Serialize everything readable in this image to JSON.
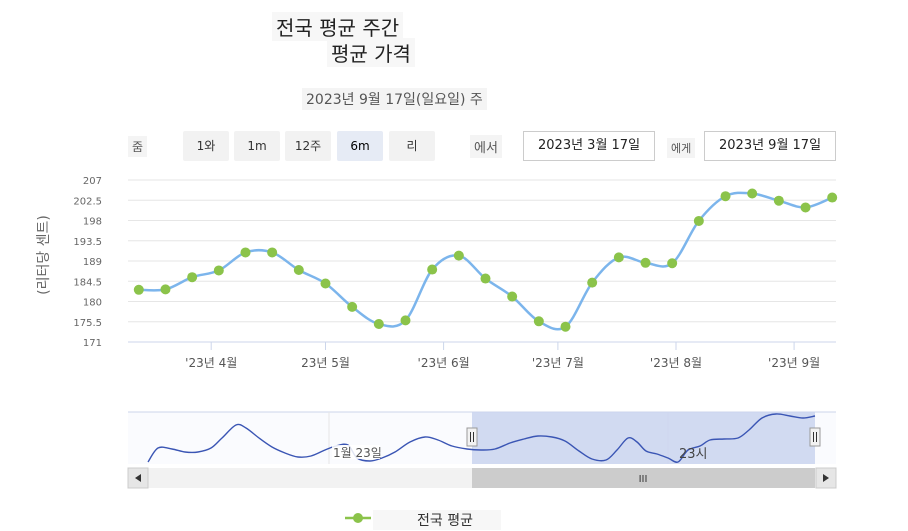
{
  "header": {
    "title_line1": "전국 평균 주간",
    "title_line2": "평균 가격",
    "subtitle": "2023년 9월 17일(일요일) 주"
  },
  "range_selector": {
    "zoom_label": "줌",
    "buttons": [
      "1와",
      "1m",
      "12주",
      "6m",
      "리"
    ],
    "selected": "6m",
    "from_label": "에서",
    "from_value": "2023년 3월 17일",
    "to_label": "에게",
    "to_value": "2023년 9월 17일"
  },
  "navigator": {
    "label_left": "1월 23일",
    "label_right": "23시",
    "scroll_grip": "III"
  },
  "colors": {
    "line": "#7cb5ec",
    "marker": "#8bc34a",
    "navigator_mask": "#c9d4ee",
    "navigator_line": "#3a55b4"
  },
  "chart_data": {
    "type": "line",
    "ylabel": "(리터당 센트)",
    "y_ticks": [
      "207",
      "202.5",
      "198",
      "193.5",
      "189",
      "184.5",
      "180",
      "175.5",
      "171"
    ],
    "ylim": [
      171,
      207
    ],
    "x_ticks": [
      "'23년 4월",
      "23년 5월",
      "'23년 6월",
      "'23년 7월",
      "'23년 8월",
      "'23년 9월"
    ],
    "x_tick_dates": [
      "2023-04-01",
      "2023-05-01",
      "2023-06-01",
      "2023-07-01",
      "2023-08-01",
      "2023-09-01"
    ],
    "grid": true,
    "legend": "bottom-center",
    "series": [
      {
        "name": "전국 평균",
        "x": [
          "2023-03-13",
          "2023-03-20",
          "2023-03-27",
          "2023-04-03",
          "2023-04-10",
          "2023-04-17",
          "2023-04-24",
          "2023-05-01",
          "2023-05-08",
          "2023-05-15",
          "2023-05-22",
          "2023-05-29",
          "2023-06-05",
          "2023-06-12",
          "2023-06-19",
          "2023-06-26",
          "2023-07-03",
          "2023-07-10",
          "2023-07-17",
          "2023-07-24",
          "2023-07-31",
          "2023-08-07",
          "2023-08-14",
          "2023-08-21",
          "2023-08-28",
          "2023-09-04",
          "2023-09-11"
        ],
        "values": [
          182.6,
          182.7,
          185.4,
          186.9,
          190.9,
          190.9,
          187.0,
          184.0,
          178.8,
          175.0,
          175.8,
          187.1,
          190.2,
          185.1,
          181.1,
          175.6,
          174.4,
          184.2,
          189.8,
          188.6,
          188.5,
          197.9,
          203.4,
          204.0,
          202.4,
          200.9,
          203.1
        ]
      }
    ]
  }
}
